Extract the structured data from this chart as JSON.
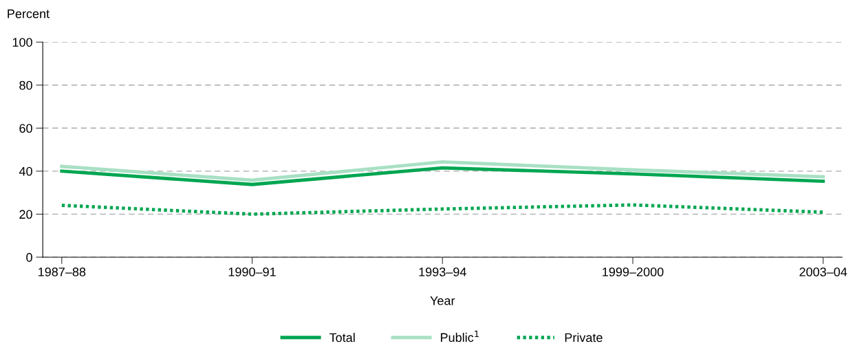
{
  "chart_data": {
    "type": "line",
    "ylabel": "Percent",
    "xlabel": "Year",
    "categories": [
      "1987–88",
      "1990–91",
      "1993–94",
      "1999–2000",
      "2003–04"
    ],
    "ylim": [
      0,
      100
    ],
    "yticks": [
      0,
      20,
      40,
      60,
      80,
      100
    ],
    "grid": "y",
    "legend": "bottom",
    "series": [
      {
        "name": "Total",
        "color": "#00a651",
        "values": [
          40.0,
          33.8,
          41.5,
          38.7,
          35.3
        ]
      },
      {
        "name": "Public$^{1}$",
        "color": "#a8e0c4",
        "values": [
          42.2,
          35.8,
          44.3,
          40.6,
          37.4
        ]
      },
      {
        "name": "Private",
        "color": "#00a651",
        "line_style": "dotted",
        "values": [
          24.1,
          20.0,
          22.4,
          24.3,
          20.9
        ]
      }
    ]
  }
}
